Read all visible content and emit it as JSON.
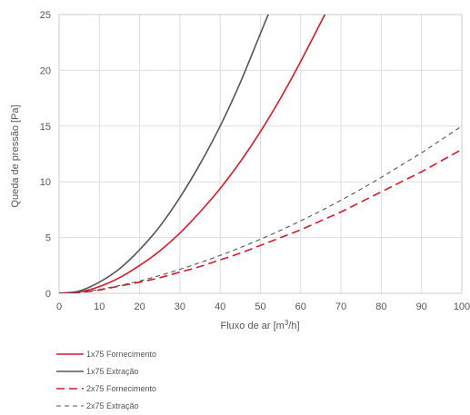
{
  "chart_data": {
    "type": "line",
    "xlabel_prefix": "Fluxo de ar [m",
    "xlabel_sup": "3",
    "xlabel_suffix": "/h]",
    "ylabel": "Queda de pressão [Pa]",
    "xlim": [
      0,
      100
    ],
    "ylim": [
      0,
      25
    ],
    "xticks": [
      0,
      10,
      20,
      30,
      40,
      50,
      60,
      70,
      80,
      90,
      100
    ],
    "yticks": [
      0,
      5,
      10,
      15,
      20,
      25
    ],
    "grid": true,
    "legend_position": "bottom-left",
    "x": [
      0,
      5,
      10,
      15,
      20,
      25,
      30,
      35,
      40,
      45,
      50,
      55,
      60,
      65,
      70,
      75,
      80,
      85,
      90,
      95,
      100
    ],
    "series": [
      {
        "name": "1x75 Fornecimento",
        "color": "#cf1b2b",
        "dash": "solid",
        "width": 1.6,
        "values": [
          0,
          0.12,
          0.6,
          1.4,
          2.5,
          3.8,
          5.4,
          7.3,
          9.4,
          11.8,
          14.5,
          17.5,
          20.8,
          24.3,
          null,
          null,
          null,
          null,
          null,
          null,
          null
        ]
      },
      {
        "name": "1x75 Extração",
        "color": "#555555",
        "dash": "solid",
        "width": 1.6,
        "values": [
          0,
          0.2,
          1.0,
          2.2,
          3.9,
          6.0,
          8.6,
          11.6,
          15.0,
          18.9,
          23.3,
          null,
          null,
          null,
          null,
          null,
          null,
          null,
          null,
          null,
          null
        ]
      },
      {
        "name": "2x75 Fornecimento",
        "color": "#cf1b2b",
        "dash": "long",
        "width": 1.6,
        "values": [
          0,
          0.08,
          0.3,
          0.65,
          1.0,
          1.4,
          1.9,
          2.4,
          3.0,
          3.6,
          4.3,
          5.0,
          5.7,
          6.5,
          7.3,
          8.2,
          9.1,
          10.0,
          10.9,
          11.9,
          12.9
        ]
      },
      {
        "name": "2x75 Extração",
        "color": "#555555",
        "dash": "short",
        "width": 1.1,
        "values": [
          0,
          0.1,
          0.35,
          0.7,
          1.1,
          1.6,
          2.15,
          2.75,
          3.4,
          4.1,
          4.85,
          5.65,
          6.5,
          7.4,
          8.35,
          9.35,
          10.4,
          11.5,
          12.6,
          13.8,
          15.0
        ]
      }
    ]
  }
}
